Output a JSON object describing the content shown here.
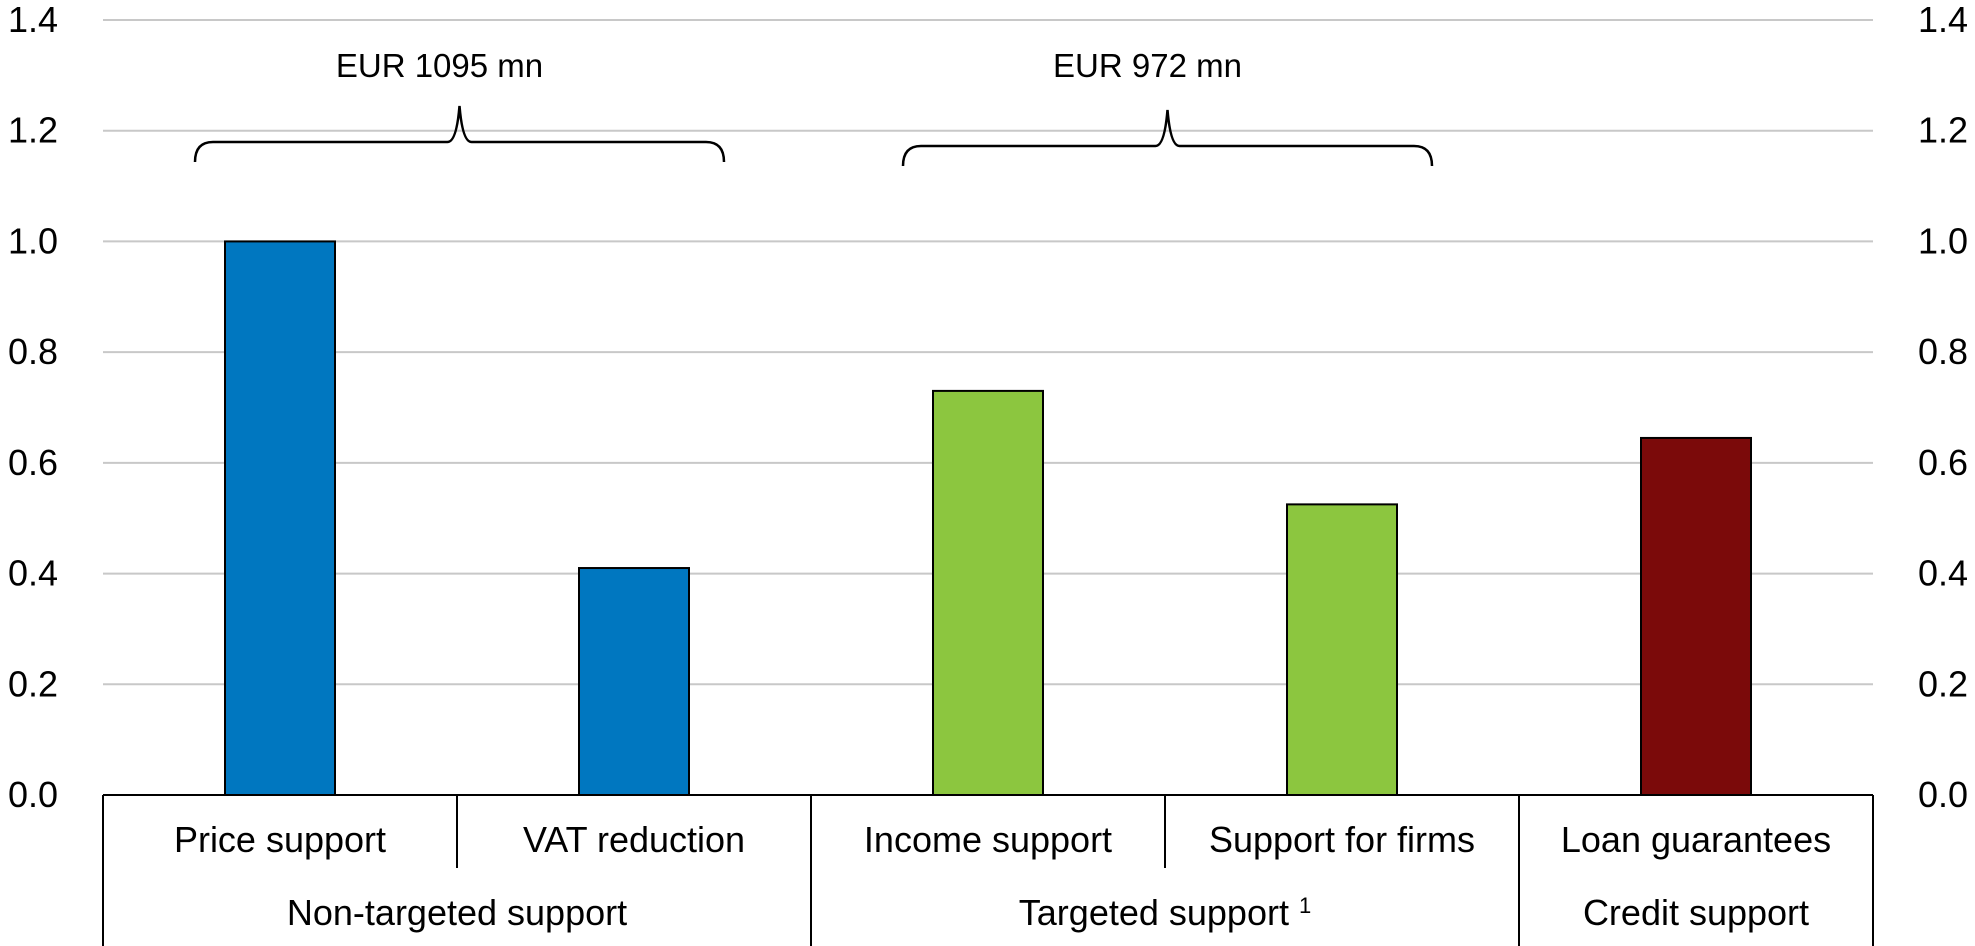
{
  "chart_data": {
    "type": "bar",
    "title": "",
    "xlabel": "",
    "ylabel": "",
    "ylim": [
      0,
      1.4
    ],
    "yticks": [
      "0.0",
      "0.2",
      "0.4",
      "0.6",
      "0.8",
      "1.0",
      "1.2",
      "1.4"
    ],
    "grid": true,
    "categories": [
      "Price support",
      "VAT reduction",
      "Income support",
      "Support for firms",
      "Loan guarantees"
    ],
    "values": [
      1.0,
      0.41,
      0.73,
      0.525,
      0.645
    ],
    "bar_colors": [
      "#0077c0",
      "#0077c0",
      "#8cc63f",
      "#8cc63f",
      "#7b0a0a"
    ],
    "groups": [
      {
        "label": "Non-targeted support",
        "span": [
          0,
          1
        ]
      },
      {
        "label": "Targeted support",
        "footnote": "1",
        "span": [
          2,
          3
        ]
      },
      {
        "label": "Credit support",
        "span": [
          4,
          4
        ]
      }
    ],
    "annotations": [
      {
        "label": "EUR 1095 mn",
        "span": [
          0,
          1
        ]
      },
      {
        "label": "EUR 972 mn",
        "span": [
          2,
          3
        ]
      }
    ]
  }
}
